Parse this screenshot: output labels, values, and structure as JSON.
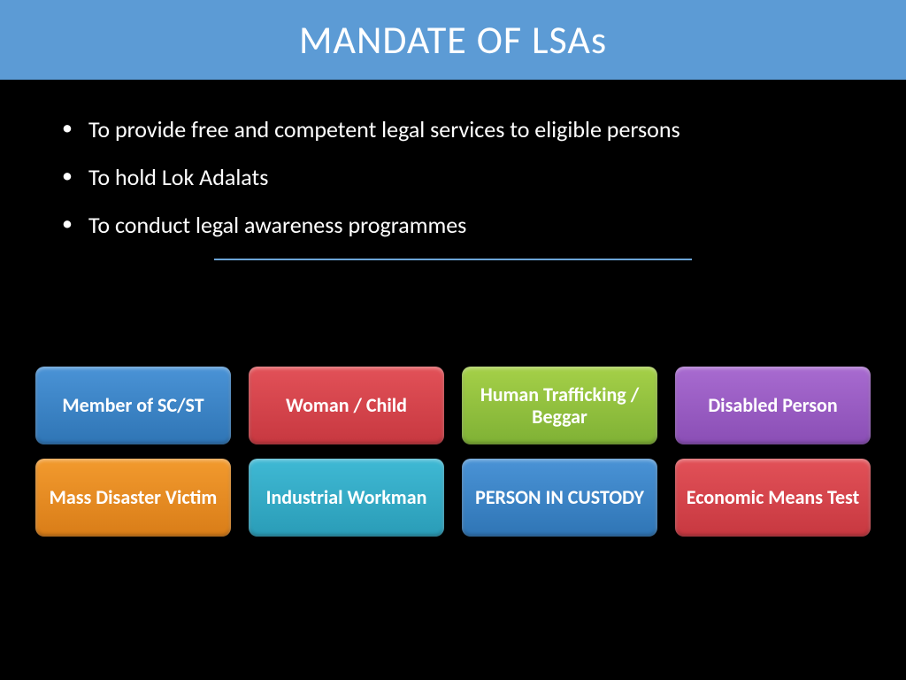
{
  "header": {
    "title": "MANDATE OF LSAs",
    "bg_color": "#5c9bd5",
    "text_color": "#ffffff"
  },
  "bullets": [
    "To provide free and competent legal services to eligible persons",
    "To hold Lok Adalats",
    "To conduct legal awareness programmes"
  ],
  "divider_color": "#6aa3d6",
  "tiles": [
    {
      "label": "Member of SC/ST",
      "bg_top": "#4a93d6",
      "bg_bottom": "#2f75b5"
    },
    {
      "label": "Woman / Child",
      "bg_top": "#e25158",
      "bg_bottom": "#c73840"
    },
    {
      "label": "Human Trafficking / Beggar",
      "bg_top": "#a5d048",
      "bg_bottom": "#7fb135"
    },
    {
      "label": "Disabled Person",
      "bg_top": "#a86bd0",
      "bg_bottom": "#8a4eb5"
    },
    {
      "label": "Mass Disaster Victim",
      "bg_top": "#f29a2e",
      "bg_bottom": "#d97d18"
    },
    {
      "label": "Industrial Workman",
      "bg_top": "#3fb9d4",
      "bg_bottom": "#2a9cb7"
    },
    {
      "label": "PERSON IN CUSTODY",
      "bg_top": "#4a93d6",
      "bg_bottom": "#2f75b5"
    },
    {
      "label": "Economic Means Test",
      "bg_top": "#e25158",
      "bg_bottom": "#c73840"
    }
  ]
}
